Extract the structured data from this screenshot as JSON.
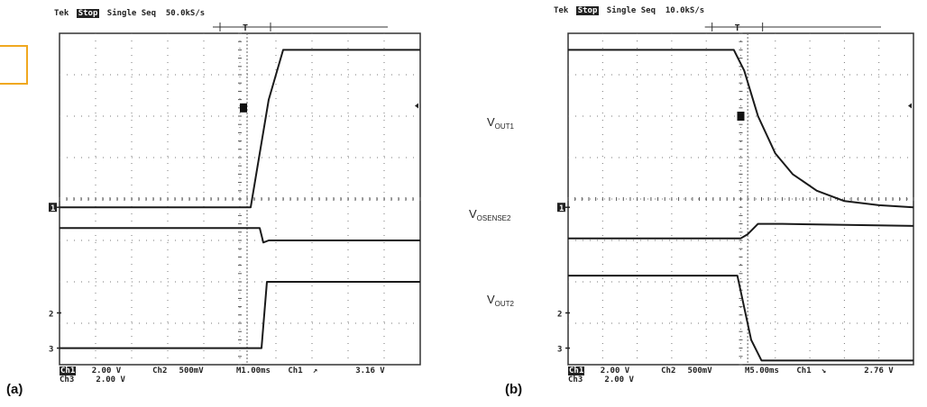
{
  "chart_data": [
    {
      "type": "line",
      "panel_label": "(a)",
      "header": {
        "brand": "Tek",
        "state": "Stop",
        "mode": "Single Seq",
        "sample_rate": "50.0kS/s"
      },
      "footer": {
        "ch1_label": "Ch1",
        "ch1_scale": "2.00 V",
        "ch2_label": "Ch2",
        "ch2_scale": "500mV",
        "ch3_label": "Ch3",
        "ch3_scale": "2.00 V",
        "timebase": "M1.00ms",
        "trigger_source": "Ch1",
        "trigger_slope": "↗",
        "trigger_level": "3.16 V"
      },
      "markers": [
        "1",
        "2",
        "3"
      ],
      "grid": {
        "x_divisions": 10,
        "y_divisions": 8
      },
      "series": [
        {
          "values": [
            [
              0,
              3.8
            ],
            [
              5.3,
              3.8
            ],
            [
              5.8,
              6.4
            ],
            [
              6.2,
              7.6
            ],
            [
              10,
              7.6
            ]
          ]
        },
        {
          "values": [
            [
              0,
              3.3
            ],
            [
              5.55,
              3.3
            ],
            [
              5.65,
              2.95
            ],
            [
              5.8,
              3.0
            ],
            [
              10,
              3.0
            ]
          ]
        },
        {
          "values": [
            [
              0,
              0.4
            ],
            [
              5.6,
              0.4
            ],
            [
              5.75,
              2.0
            ],
            [
              10,
              2.0
            ]
          ]
        }
      ]
    },
    {
      "type": "line",
      "panel_label": "(b)",
      "header": {
        "brand": "Tek",
        "state": "Stop",
        "mode": "Single Seq",
        "sample_rate": "10.0kS/s"
      },
      "footer": {
        "ch1_label": "Ch1",
        "ch1_scale": "2.00 V",
        "ch2_label": "Ch2",
        "ch2_scale": "500mV",
        "ch3_label": "Ch3",
        "ch3_scale": "2.00 V",
        "timebase": "M5.00ms",
        "trigger_source": "Ch1",
        "trigger_slope": "↘",
        "trigger_level": "2.76 V"
      },
      "markers": [
        "1",
        "2",
        "3"
      ],
      "grid": {
        "x_divisions": 10,
        "y_divisions": 8
      },
      "series": [
        {
          "values": [
            [
              0,
              7.6
            ],
            [
              4.8,
              7.6
            ],
            [
              5.1,
              7.1
            ],
            [
              5.5,
              6.0
            ],
            [
              6.0,
              5.1
            ],
            [
              6.5,
              4.6
            ],
            [
              7.2,
              4.2
            ],
            [
              8.0,
              3.95
            ],
            [
              9.0,
              3.85
            ],
            [
              10,
              3.8
            ]
          ]
        },
        {
          "values": [
            [
              0,
              3.05
            ],
            [
              5.0,
              3.05
            ],
            [
              5.2,
              3.15
            ],
            [
              5.5,
              3.4
            ],
            [
              6.2,
              3.4
            ],
            [
              10,
              3.35
            ]
          ]
        },
        {
          "values": [
            [
              0,
              2.15
            ],
            [
              4.9,
              2.15
            ],
            [
              5.3,
              0.6
            ],
            [
              5.6,
              0.1
            ],
            [
              10,
              0.1
            ]
          ]
        }
      ]
    }
  ],
  "signal_labels": [
    {
      "main": "V",
      "sub": "OUT1"
    },
    {
      "main": "V",
      "sub": "OSENSE2"
    },
    {
      "main": "V",
      "sub": "OUT2"
    }
  ]
}
